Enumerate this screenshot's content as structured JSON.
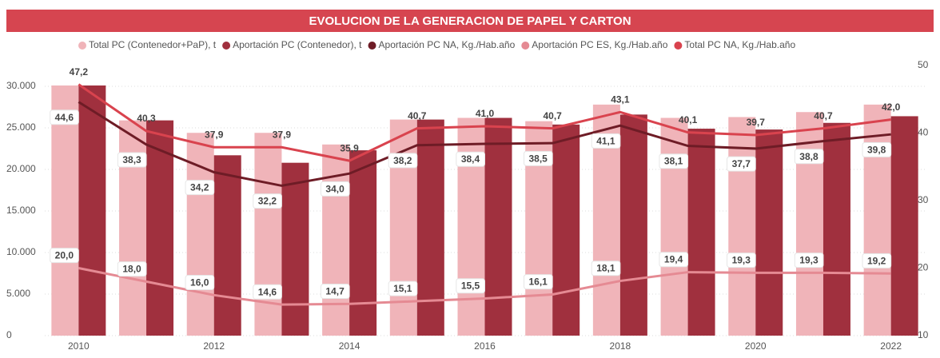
{
  "chart_data": {
    "type": "combo",
    "title": "EVOLUCION DE LA GENERACION DE PAPEL Y CARTON",
    "categories": [
      "2010",
      null,
      "2012",
      null,
      "2014",
      null,
      "2016",
      null,
      "2018",
      null,
      "2020",
      null,
      "2022"
    ],
    "ylim": [
      0,
      32500
    ],
    "yticks": [
      0,
      {
        "value": 5000,
        "label": "5.000"
      },
      {
        "value": 10000,
        "label": "10.000"
      },
      {
        "value": 15000,
        "label": "15.000"
      },
      {
        "value": 20000,
        "label": "20.000"
      },
      {
        "value": 25000,
        "label": "25.000"
      },
      {
        "value": 30000,
        "label": "30.000"
      }
    ],
    "y2lim": [
      10,
      50
    ],
    "y2ticks": [
      10,
      20,
      30,
      40,
      50
    ],
    "grid": true,
    "legend": "top",
    "series": [
      {
        "name": "Total PC (Contenedor+PaP), t",
        "type": "bar",
        "color": "#f0b4b9",
        "values": [
          30100,
          25900,
          24400,
          24400,
          23000,
          26000,
          26200,
          25800,
          27800,
          26200,
          26300,
          26900,
          27800
        ]
      },
      {
        "name": "Aportación PC (Contenedor), t",
        "type": "bar",
        "color": "#a0303e",
        "values": [
          30100,
          25900,
          21700,
          20800,
          22300,
          26000,
          26200,
          25400,
          26600,
          24900,
          24800,
          25600,
          26400
        ]
      },
      {
        "name": "Aportación PC NA, Kg./Hab.año",
        "type": "line",
        "axis": "y2",
        "color": "#6e1c26",
        "values": [
          44.6,
          38.3,
          34.2,
          32.2,
          34.0,
          38.2,
          38.4,
          38.5,
          41.1,
          38.1,
          37.7,
          38.8,
          39.8
        ],
        "value_labels": [
          "44,6",
          "38,3",
          "34,2",
          "32,2",
          "34,0",
          "38,2",
          "38,4",
          "38,5",
          "41,1",
          "38,1",
          "37,7",
          "38,8",
          "39,8"
        ]
      },
      {
        "name": "Aportación PC ES, Kg./Hab.año",
        "type": "line",
        "axis": "y2",
        "color": "#e58a93",
        "values": [
          20.0,
          18.0,
          16.0,
          14.6,
          14.7,
          15.1,
          15.5,
          16.1,
          18.1,
          19.4,
          19.3,
          19.3,
          19.2
        ],
        "value_labels": [
          "20,0",
          "18,0",
          "16,0",
          "14,6",
          "14,7",
          "15,1",
          "15,5",
          "16,1",
          "18,1",
          "19,4",
          "19,3",
          "19,3",
          "19,2"
        ]
      },
      {
        "name": "Total PC NA, Kg./Hab.año",
        "type": "line",
        "axis": "y2",
        "color": "#d9434e",
        "values": [
          47.2,
          40.3,
          37.9,
          37.9,
          35.9,
          40.7,
          41.0,
          40.7,
          43.1,
          40.1,
          39.7,
          40.7,
          42.0
        ],
        "value_labels": [
          "47,2",
          "40,3",
          "37,9",
          "37,9",
          "35,9",
          "40,7",
          "41,0",
          "40,7",
          "43,1",
          "40,1",
          "39,7",
          "40,7",
          "42,0"
        ]
      }
    ]
  }
}
